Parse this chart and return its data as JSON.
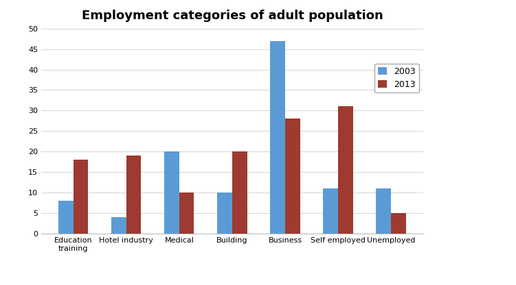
{
  "title": "Employment categories of adult population",
  "categories": [
    "Education\ntraining",
    "Hotel industry",
    "Medical",
    "Building",
    "Business",
    "Self employed",
    "Unemployed"
  ],
  "values_2003": [
    8,
    4,
    20,
    10,
    47,
    11,
    11
  ],
  "values_2013": [
    18,
    19,
    10,
    20,
    28,
    31,
    5
  ],
  "color_2003": "#5B9BD5",
  "color_2013": "#9E3A2F",
  "legend_labels": [
    "2003",
    "2013"
  ],
  "ylim": [
    0,
    50
  ],
  "yticks": [
    0,
    5,
    10,
    15,
    20,
    25,
    30,
    35,
    40,
    45,
    50
  ],
  "bar_width": 0.28,
  "background_color": "#FFFFFF",
  "grid_color": "#D9D9D9",
  "title_fontsize": 13,
  "tick_fontsize": 8,
  "legend_fontsize": 9
}
